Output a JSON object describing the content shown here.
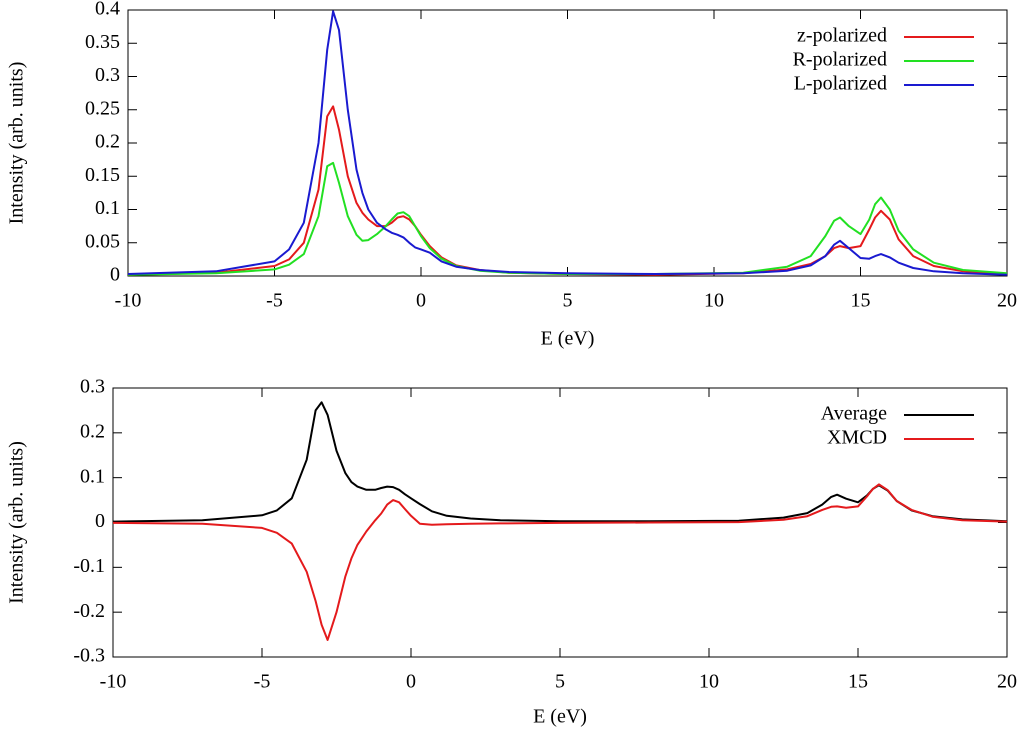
{
  "chart_data": [
    {
      "type": "line",
      "x_label": "E (eV)",
      "y_label": "Intensity (arb. units)",
      "legend": "top-right",
      "xlim": [
        -10,
        20
      ],
      "ylim": [
        0,
        0.4
      ],
      "xticks": [
        -10,
        -5,
        0,
        5,
        10,
        15,
        20
      ],
      "yticks": [
        0,
        0.05,
        0.1,
        0.15,
        0.2,
        0.25,
        0.3,
        0.35,
        0.4
      ],
      "x": [
        -10,
        -7,
        -5,
        -4.5,
        -4,
        -3.5,
        -3.2,
        -3,
        -2.8,
        -2.5,
        -2.2,
        -2,
        -1.8,
        -1.5,
        -1.2,
        -1,
        -0.8,
        -0.6,
        -0.4,
        -0.2,
        0,
        0.3,
        0.7,
        1.2,
        2,
        3,
        5,
        8,
        11,
        12.5,
        13.3,
        13.8,
        14.1,
        14.3,
        14.6,
        15,
        15.3,
        15.5,
        15.7,
        16,
        16.3,
        16.8,
        17.5,
        18.5,
        20
      ],
      "series": [
        {
          "name": "z-polarized",
          "color": "#e41a1c",
          "values": [
            0.002,
            0.005,
            0.015,
            0.025,
            0.05,
            0.13,
            0.24,
            0.255,
            0.22,
            0.15,
            0.11,
            0.095,
            0.085,
            0.075,
            0.075,
            0.08,
            0.088,
            0.09,
            0.085,
            0.075,
            0.062,
            0.045,
            0.028,
            0.016,
            0.009,
            0.005,
            0.003,
            0.002,
            0.004,
            0.01,
            0.018,
            0.03,
            0.042,
            0.045,
            0.042,
            0.045,
            0.07,
            0.088,
            0.098,
            0.085,
            0.055,
            0.03,
            0.015,
            0.007,
            0.003
          ]
        },
        {
          "name": "R-polarized",
          "color": "#22e022",
          "values": [
            0.002,
            0.004,
            0.01,
            0.017,
            0.033,
            0.09,
            0.165,
            0.17,
            0.14,
            0.09,
            0.062,
            0.053,
            0.054,
            0.063,
            0.075,
            0.085,
            0.094,
            0.096,
            0.09,
            0.075,
            0.06,
            0.042,
            0.026,
            0.015,
            0.008,
            0.005,
            0.003,
            0.003,
            0.005,
            0.014,
            0.03,
            0.06,
            0.083,
            0.088,
            0.075,
            0.063,
            0.085,
            0.108,
            0.118,
            0.1,
            0.068,
            0.04,
            0.02,
            0.009,
            0.004
          ]
        },
        {
          "name": "L-polarized",
          "color": "#1a1ad0",
          "values": [
            0.003,
            0.007,
            0.022,
            0.04,
            0.08,
            0.2,
            0.34,
            0.398,
            0.37,
            0.25,
            0.16,
            0.125,
            0.1,
            0.08,
            0.07,
            0.065,
            0.062,
            0.058,
            0.05,
            0.043,
            0.04,
            0.035,
            0.022,
            0.014,
            0.009,
            0.006,
            0.004,
            0.003,
            0.004,
            0.008,
            0.016,
            0.03,
            0.047,
            0.053,
            0.042,
            0.027,
            0.026,
            0.03,
            0.033,
            0.028,
            0.02,
            0.012,
            0.007,
            0.004,
            0.002
          ]
        }
      ]
    },
    {
      "type": "line",
      "x_label": "E (eV)",
      "y_label": "Intensity (arb. units)",
      "legend": "top-right",
      "xlim": [
        -10,
        20
      ],
      "ylim": [
        -0.3,
        0.3
      ],
      "xticks": [
        -10,
        -5,
        0,
        5,
        10,
        15,
        20
      ],
      "yticks": [
        -0.3,
        -0.2,
        -0.1,
        0,
        0.1,
        0.2,
        0.3
      ],
      "x": [
        -10,
        -7,
        -5,
        -4.5,
        -4,
        -3.5,
        -3.2,
        -3,
        -2.8,
        -2.5,
        -2.2,
        -2,
        -1.8,
        -1.5,
        -1.2,
        -1,
        -0.8,
        -0.6,
        -0.4,
        -0.2,
        0,
        0.3,
        0.7,
        1.2,
        2,
        3,
        5,
        8,
        11,
        12.5,
        13.3,
        13.8,
        14.1,
        14.3,
        14.6,
        15,
        15.3,
        15.5,
        15.7,
        16,
        16.3,
        16.8,
        17.5,
        18.5,
        20
      ],
      "series": [
        {
          "name": "Average",
          "color": "#000000",
          "values": [
            0.002,
            0.005,
            0.016,
            0.027,
            0.054,
            0.14,
            0.25,
            0.268,
            0.24,
            0.16,
            0.11,
            0.09,
            0.08,
            0.073,
            0.073,
            0.077,
            0.08,
            0.079,
            0.073,
            0.063,
            0.054,
            0.041,
            0.025,
            0.015,
            0.009,
            0.005,
            0.003,
            0.003,
            0.004,
            0.011,
            0.021,
            0.04,
            0.057,
            0.062,
            0.053,
            0.045,
            0.06,
            0.075,
            0.083,
            0.071,
            0.048,
            0.027,
            0.014,
            0.007,
            0.003
          ]
        },
        {
          "name": "XMCD",
          "color": "#e41a1c",
          "values": [
            -0.001,
            -0.003,
            -0.012,
            -0.023,
            -0.047,
            -0.11,
            -0.175,
            -0.228,
            -0.262,
            -0.2,
            -0.12,
            -0.08,
            -0.05,
            -0.02,
            0.005,
            0.02,
            0.04,
            0.05,
            0.045,
            0.03,
            0.015,
            -0.003,
            -0.005,
            -0.004,
            -0.003,
            -0.002,
            -0.001,
            0,
            0.001,
            0.006,
            0.014,
            0.028,
            0.035,
            0.036,
            0.033,
            0.036,
            0.058,
            0.075,
            0.085,
            0.072,
            0.048,
            0.028,
            0.013,
            0.005,
            0.002
          ]
        }
      ]
    }
  ]
}
